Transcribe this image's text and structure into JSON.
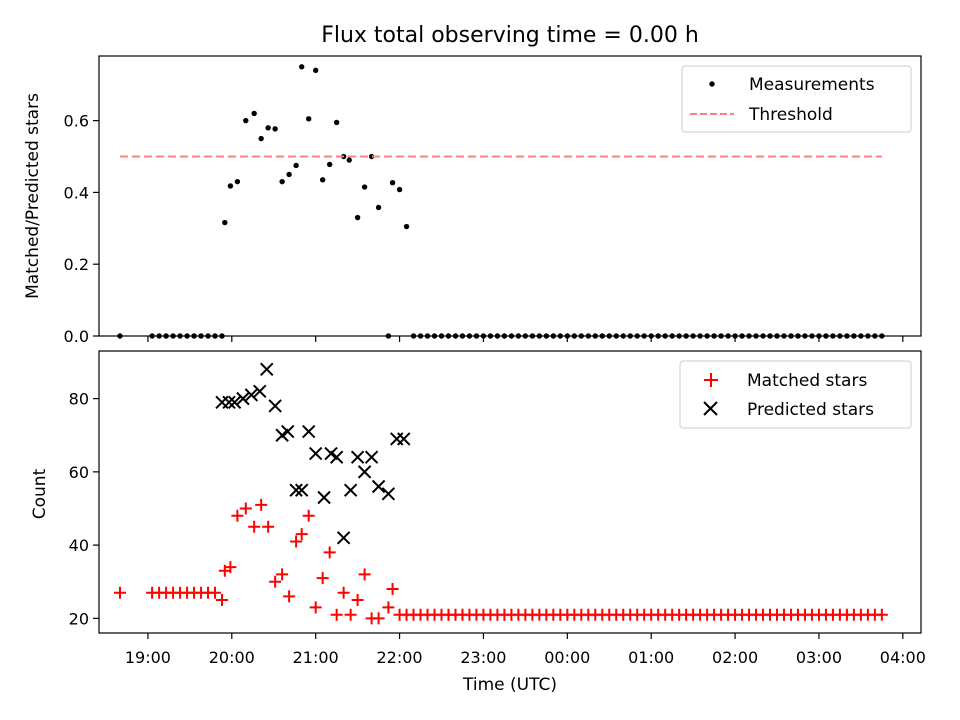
{
  "title": "Flux total observing time = 0.00 h",
  "x_axis": {
    "label": "Time (UTC)",
    "ticks": [
      "19:00",
      "20:00",
      "21:00",
      "22:00",
      "23:00",
      "00:00",
      "01:00",
      "02:00",
      "03:00",
      "04:00"
    ]
  },
  "chart_data": [
    {
      "type": "scatter",
      "ylabel": "Matched/Predicted stars",
      "xlim": [
        "18:25",
        "04:13"
      ],
      "ylim": [
        0,
        0.78
      ],
      "yticks": [
        0.0,
        0.2,
        0.4,
        0.6
      ],
      "legend_position": "top-right",
      "series": [
        {
          "name": "Measurements",
          "kind": "points",
          "color": "#000000",
          "x": [
            "18:40",
            "19:03",
            "19:08",
            "19:13",
            "19:18",
            "19:23",
            "19:28",
            "19:33",
            "19:38",
            "19:43",
            "19:48",
            "19:53",
            "19:55",
            "19:59",
            "20:04",
            "20:10",
            "20:16",
            "20:21",
            "20:26",
            "20:31",
            "20:36",
            "20:41",
            "20:46",
            "20:50",
            "20:55",
            "21:00",
            "21:05",
            "21:10",
            "21:15",
            "21:20",
            "21:24",
            "21:30",
            "21:35",
            "21:40",
            "21:45",
            "21:52",
            "21:55",
            "22:00",
            "22:05",
            "22:10",
            "22:15",
            "22:20",
            "22:25",
            "22:30",
            "22:35",
            "22:40",
            "22:45",
            "22:50",
            "22:55",
            "23:00",
            "23:05",
            "23:10",
            "23:15",
            "23:20",
            "23:25",
            "23:30",
            "23:35",
            "23:40",
            "23:45",
            "23:50",
            "23:55",
            "00:00",
            "00:05",
            "00:10",
            "00:15",
            "00:20",
            "00:25",
            "00:30",
            "00:35",
            "00:40",
            "00:45",
            "00:50",
            "00:55",
            "01:00",
            "01:05",
            "01:10",
            "01:15",
            "01:20",
            "01:25",
            "01:30",
            "01:35",
            "01:40",
            "01:45",
            "01:50",
            "01:55",
            "02:00",
            "02:05",
            "02:10",
            "02:15",
            "02:20",
            "02:25",
            "02:30",
            "02:35",
            "02:40",
            "02:45",
            "02:50",
            "02:55",
            "03:00",
            "03:05",
            "03:10",
            "03:15",
            "03:20",
            "03:25",
            "03:30",
            "03:35",
            "03:40",
            "03:45"
          ],
          "y": [
            0,
            0,
            0,
            0,
            0,
            0,
            0,
            0,
            0,
            0,
            0,
            0,
            0.316,
            0.418,
            0.43,
            0.6,
            0.62,
            0.55,
            0.58,
            0.577,
            0.43,
            0.45,
            0.475,
            0.75,
            0.605,
            0.74,
            0.435,
            0.478,
            0.595,
            0.5,
            0.49,
            0.33,
            0.415,
            0.5,
            0.358,
            0,
            0.427,
            0.408,
            0.305,
            0,
            0,
            0,
            0,
            0,
            0,
            0,
            0,
            0,
            0,
            0,
            0,
            0,
            0,
            0,
            0,
            0,
            0,
            0,
            0,
            0,
            0,
            0,
            0,
            0,
            0,
            0,
            0,
            0,
            0,
            0,
            0,
            0,
            0,
            0,
            0,
            0,
            0,
            0,
            0,
            0,
            0,
            0,
            0,
            0,
            0,
            0,
            0,
            0,
            0,
            0,
            0,
            0,
            0,
            0,
            0,
            0,
            0,
            0,
            0,
            0,
            0,
            0,
            0,
            0,
            0,
            0,
            0
          ]
        },
        {
          "name": "Threshold",
          "kind": "dashed-line",
          "color": "#ff7f7f",
          "x": [
            "18:40",
            "03:45"
          ],
          "y": [
            0.5,
            0.5
          ]
        }
      ]
    },
    {
      "type": "scatter",
      "ylabel": "Count",
      "xlim": [
        "18:25",
        "04:13"
      ],
      "ylim": [
        16,
        93
      ],
      "yticks": [
        20,
        40,
        60,
        80
      ],
      "legend_position": "top-right",
      "series": [
        {
          "name": "Matched stars",
          "marker": "plus",
          "color": "#ff0000",
          "x": [
            "18:40",
            "19:03",
            "19:08",
            "19:13",
            "19:18",
            "19:23",
            "19:28",
            "19:33",
            "19:38",
            "19:43",
            "19:48",
            "19:53",
            "19:55",
            "19:59",
            "20:04",
            "20:10",
            "20:16",
            "20:21",
            "20:26",
            "20:31",
            "20:36",
            "20:41",
            "20:46",
            "20:50",
            "20:55",
            "21:00",
            "21:05",
            "21:10",
            "21:15",
            "21:20",
            "21:25",
            "21:30",
            "21:35",
            "21:40",
            "21:45",
            "21:52",
            "21:55",
            "22:00",
            "22:05",
            "22:10",
            "22:15",
            "22:20",
            "22:25",
            "22:30",
            "22:35",
            "22:40",
            "22:45",
            "22:50",
            "22:55",
            "23:00",
            "23:05",
            "23:10",
            "23:15",
            "23:20",
            "23:25",
            "23:30",
            "23:35",
            "23:40",
            "23:45",
            "23:50",
            "23:55",
            "00:00",
            "00:05",
            "00:10",
            "00:15",
            "00:20",
            "00:25",
            "00:30",
            "00:35",
            "00:40",
            "00:45",
            "00:50",
            "00:55",
            "01:00",
            "01:05",
            "01:10",
            "01:15",
            "01:20",
            "01:25",
            "01:30",
            "01:35",
            "01:40",
            "01:45",
            "01:50",
            "01:55",
            "02:00",
            "02:05",
            "02:10",
            "02:15",
            "02:20",
            "02:25",
            "02:30",
            "02:35",
            "02:40",
            "02:45",
            "02:50",
            "02:55",
            "03:00",
            "03:05",
            "03:10",
            "03:15",
            "03:20",
            "03:25",
            "03:30",
            "03:35",
            "03:40",
            "03:45"
          ],
          "y": [
            27,
            27,
            27,
            27,
            27,
            27,
            27,
            27,
            27,
            27,
            27,
            25,
            33,
            34,
            48,
            50,
            45,
            51,
            45,
            30,
            32,
            26,
            41,
            43,
            48,
            23,
            31,
            38,
            21,
            27,
            21,
            25,
            32,
            20,
            20,
            23,
            28,
            21,
            21,
            21,
            21,
            21,
            21,
            21,
            21,
            21,
            21,
            21,
            21,
            21,
            21,
            21,
            21,
            21,
            21,
            21,
            21,
            21,
            21,
            21,
            21,
            21,
            21,
            21,
            21,
            21,
            21,
            21,
            21,
            21,
            21,
            21,
            21,
            21,
            21,
            21,
            21,
            21,
            21,
            21,
            21,
            21,
            21,
            21,
            21,
            21,
            21,
            21,
            21,
            21,
            21,
            21,
            21,
            21,
            21,
            21,
            21,
            21,
            21,
            21,
            21,
            21,
            21,
            21,
            21,
            21,
            21
          ]
        },
        {
          "name": "Predicted stars",
          "marker": "x",
          "color": "#000000",
          "x": [
            "19:53",
            "19:58",
            "20:02",
            "20:08",
            "20:14",
            "20:20",
            "20:25",
            "20:31",
            "20:36",
            "20:40",
            "20:46",
            "20:50",
            "20:55",
            "21:00",
            "21:06",
            "21:11",
            "21:15",
            "21:20",
            "21:25",
            "21:30",
            "21:35",
            "21:40",
            "21:45",
            "21:52",
            "21:58",
            "22:03"
          ],
          "y": [
            79,
            79,
            79,
            80,
            81,
            82,
            88,
            78,
            70,
            71,
            55,
            55,
            71,
            65,
            53,
            65,
            64,
            42,
            55,
            64,
            60,
            64,
            56,
            54,
            69,
            69
          ]
        }
      ]
    }
  ]
}
